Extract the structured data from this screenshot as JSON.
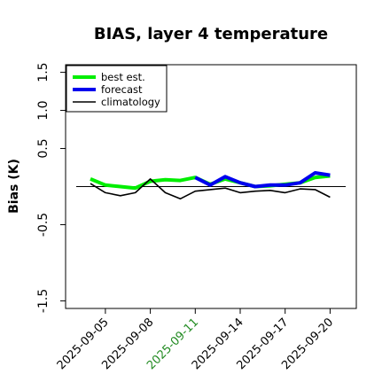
{
  "chart_data": {
    "type": "line",
    "title": "BIAS, layer 4 temperature",
    "ylabel": "Bias (K)",
    "xlabel": "",
    "x": [
      "2025-09-04",
      "2025-09-05",
      "2025-09-06",
      "2025-09-07",
      "2025-09-08",
      "2025-09-09",
      "2025-09-10",
      "2025-09-11",
      "2025-09-12",
      "2025-09-13",
      "2025-09-14",
      "2025-09-15",
      "2025-09-16",
      "2025-09-17",
      "2025-09-18",
      "2025-09-19",
      "2025-09-20"
    ],
    "x_tick_labels": [
      "2025-09-05",
      "2025-09-08",
      "2025-09-11",
      "2025-09-14",
      "2025-09-17",
      "2025-09-20"
    ],
    "highlighted_tick": "2025-09-11",
    "highlight_color": "#228B22",
    "y_tick_labels": [
      "1.5",
      "1.0",
      "0.5",
      "0.5",
      "1.5"
    ],
    "y_tick_values": [
      1.5,
      1.0,
      0.5,
      -0.5,
      -1.5
    ],
    "y_tick_minus": [
      false,
      false,
      false,
      true,
      true
    ],
    "ylim": [
      -1.6,
      1.6
    ],
    "zero_line": true,
    "grid": false,
    "legend_position": "top-left",
    "series": [
      {
        "name": "best est.",
        "color": "#00ee00",
        "values": [
          0.1,
          0.02,
          0.0,
          -0.02,
          0.07,
          0.09,
          0.08,
          0.12,
          0.03,
          0.1,
          0.05,
          0.0,
          0.01,
          0.03,
          0.05,
          0.12,
          0.14
        ]
      },
      {
        "name": "forecast",
        "color": "#0000ee",
        "values": [
          null,
          null,
          null,
          null,
          null,
          null,
          null,
          0.12,
          0.02,
          0.13,
          0.05,
          0.0,
          0.02,
          0.02,
          0.05,
          0.18,
          0.15
        ]
      },
      {
        "name": "climatology",
        "color": "#000000",
        "values": [
          0.04,
          -0.08,
          -0.12,
          -0.08,
          0.1,
          -0.08,
          -0.16,
          -0.06,
          -0.04,
          -0.02,
          -0.08,
          -0.06,
          -0.05,
          -0.08,
          -0.03,
          -0.04,
          -0.14
        ]
      }
    ]
  }
}
